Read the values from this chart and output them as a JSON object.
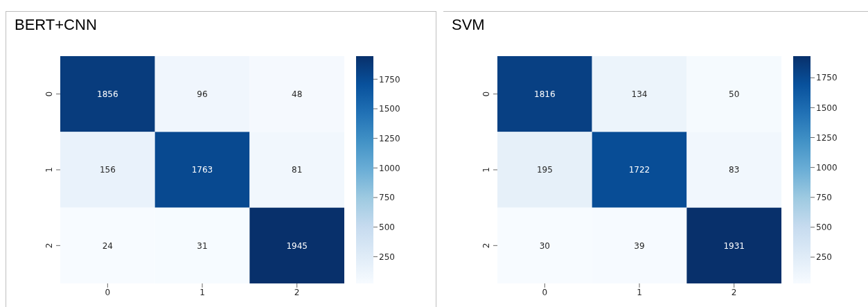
{
  "chart_data": [
    {
      "type": "heatmap",
      "title": "BERT+CNN",
      "categories": [
        "0",
        "1",
        "2"
      ],
      "y_categories": [
        "0",
        "1",
        "2"
      ],
      "cells": [
        [
          1856,
          96,
          48
        ],
        [
          156,
          1763,
          81
        ],
        [
          24,
          31,
          1945
        ]
      ],
      "data_labels": true,
      "clim": [
        24,
        1945
      ],
      "cticks": [
        250,
        500,
        750,
        1000,
        1250,
        1500,
        1750
      ]
    },
    {
      "type": "heatmap",
      "title": "SVM",
      "categories": [
        "0",
        "1",
        "2"
      ],
      "y_categories": [
        "0",
        "1",
        "2"
      ],
      "cells": [
        [
          1816,
          134,
          50
        ],
        [
          195,
          1722,
          83
        ],
        [
          30,
          39,
          1931
        ]
      ],
      "data_labels": true,
      "clim": [
        30,
        1931
      ],
      "cticks": [
        250,
        500,
        750,
        1000,
        1250,
        1500,
        1750
      ]
    }
  ]
}
